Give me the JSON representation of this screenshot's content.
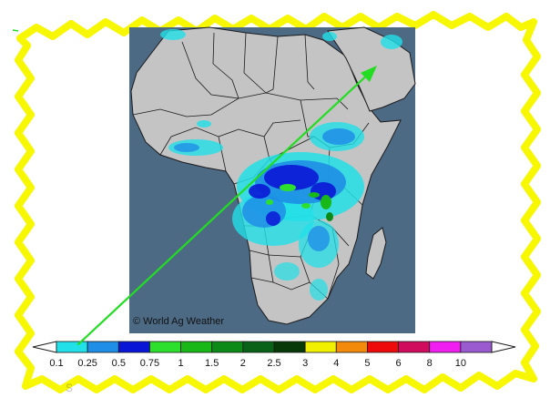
{
  "map": {
    "credit": "© World Ag Weather",
    "ocean_color": "#4d6a85",
    "land_color": "#c4c4c4",
    "border_color": "#1a1a1a"
  },
  "annotations": {
    "frame_color": "#f7f700",
    "arrow_color": "#22dd22"
  },
  "legend": {
    "bins": [
      {
        "label": "0.1",
        "color": "#22e0e8"
      },
      {
        "label": "0.25",
        "color": "#1e8ee6"
      },
      {
        "label": "0.5",
        "color": "#0a16d6"
      },
      {
        "label": "0.75",
        "color": "#2ee02e"
      },
      {
        "label": "1",
        "color": "#18b818"
      },
      {
        "label": "1.5",
        "color": "#0c8a18"
      },
      {
        "label": "2",
        "color": "#0a6218"
      },
      {
        "label": "2.5",
        "color": "#063808"
      },
      {
        "label": "3",
        "color": "#f0f000"
      },
      {
        "label": "4",
        "color": "#f48a0c"
      },
      {
        "label": "5",
        "color": "#ee0a0a"
      },
      {
        "label": "6",
        "color": "#d00a5c"
      },
      {
        "label": "8",
        "color": "#f01ef0"
      },
      {
        "label": "10",
        "color": "#9a5ad0"
      }
    ]
  }
}
